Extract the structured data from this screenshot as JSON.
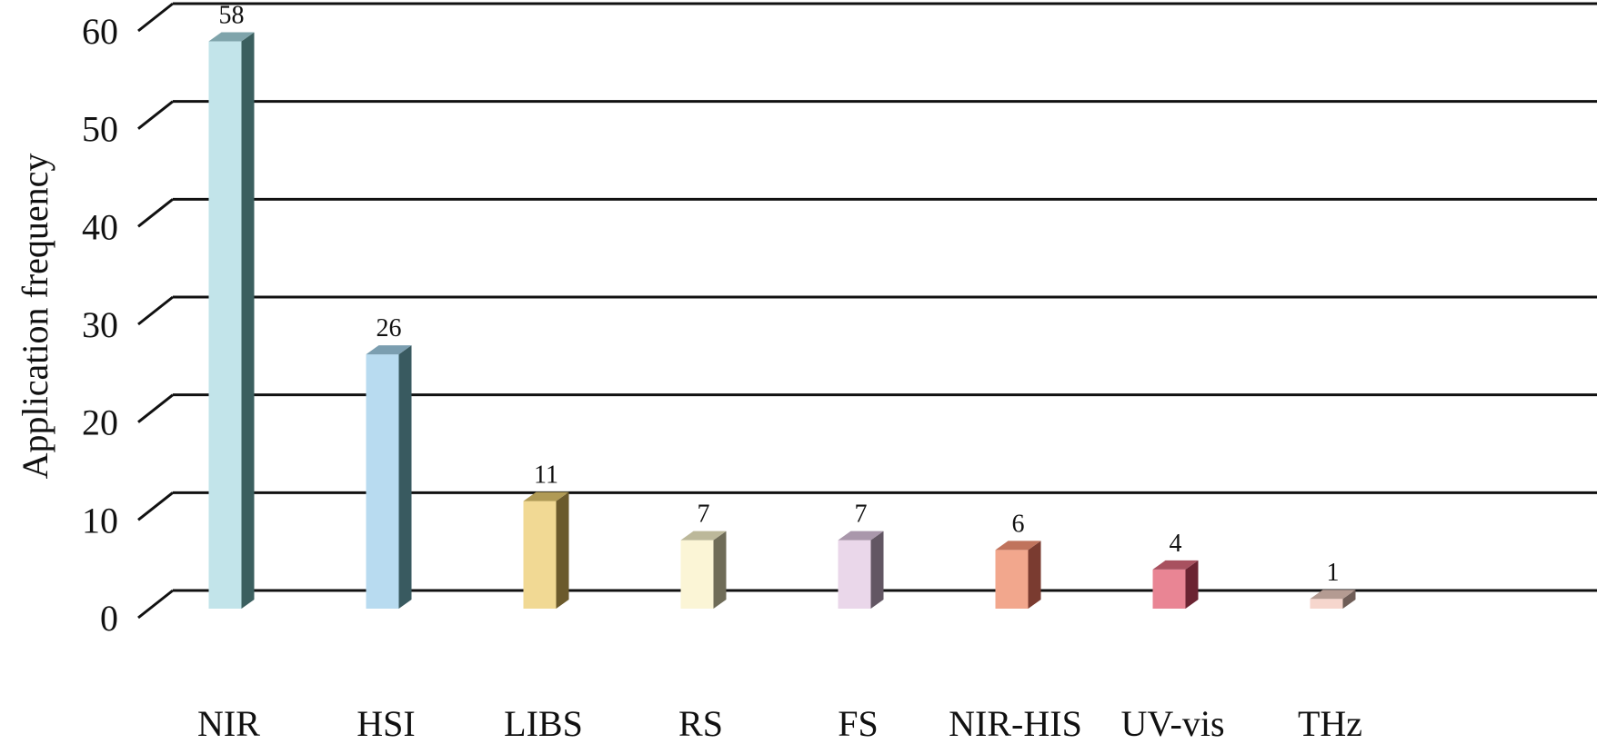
{
  "chart_data": {
    "type": "bar",
    "title": "",
    "xlabel": "",
    "ylabel": "Application frequency",
    "ylim": [
      0,
      60
    ],
    "yticks": [
      0,
      10,
      20,
      30,
      40,
      50,
      60
    ],
    "grid": true,
    "style": "3d-bars",
    "categories": [
      "NIR",
      "HSI",
      "LIBS",
      "RS",
      "FS",
      "NIR-HIS",
      "UV-vis",
      "THz"
    ],
    "values": [
      58,
      26,
      11,
      7,
      7,
      6,
      4,
      1
    ],
    "colors": [
      {
        "front": "#c2e4ea",
        "top": "#7fa4ab",
        "side": "#3b5f5f"
      },
      {
        "front": "#b8dbf0",
        "top": "#7b9eb0",
        "side": "#395a60"
      },
      {
        "front": "#f1d994",
        "top": "#b09a55",
        "side": "#6b5a2c"
      },
      {
        "front": "#fbf5d6",
        "top": "#bcb89a",
        "side": "#6f6c58"
      },
      {
        "front": "#ead7ea",
        "top": "#a997ab",
        "side": "#625663"
      },
      {
        "front": "#f2a78d",
        "top": "#c0735c",
        "side": "#7a3b30"
      },
      {
        "front": "#e98594",
        "top": "#a8515f",
        "side": "#6b2432"
      },
      {
        "front": "#f6d6cd",
        "top": "#b49b92",
        "side": "#6f5d57"
      }
    ],
    "grid_color": "#111111"
  }
}
